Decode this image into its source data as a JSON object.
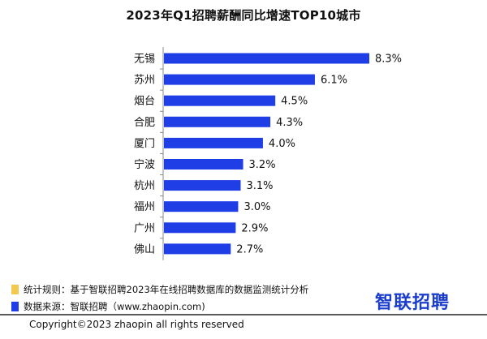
{
  "title": "2023年Q1招聘薪酬同比增速TOP10城市",
  "colors": {
    "bar": "#1f3ee6",
    "note_rule": "#f2c94c",
    "note_source": "#1f3ee6",
    "logo": "#1a3dcc"
  },
  "chart_data": {
    "type": "bar",
    "orientation": "horizontal",
    "title": "2023年Q1招聘薪酬同比增速TOP10城市",
    "xlabel": "",
    "ylabel": "",
    "categories": [
      "无锡",
      "苏州",
      "烟台",
      "合肥",
      "厦门",
      "宁波",
      "杭州",
      "福州",
      "广州",
      "佛山"
    ],
    "values": [
      8.3,
      6.1,
      4.5,
      4.3,
      4.0,
      3.2,
      3.1,
      3.0,
      2.9,
      2.7
    ],
    "data_labels": [
      "8.3%",
      "6.1%",
      "4.5%",
      "4.3%",
      "4.0%",
      "3.2%",
      "3.1%",
      "3.0%",
      "2.9%",
      "2.7%"
    ],
    "xlim": [
      0,
      8.3
    ],
    "grid": false
  },
  "notes": {
    "rule": "统计规则：基于智联招聘2023年在线招聘数据库的数据监测统计分析",
    "source": "数据来源：智联招聘（www.zhaopin.com)"
  },
  "logo": "智联招聘",
  "copyright": "Copyright©2023 zhaopin all rights reserved"
}
